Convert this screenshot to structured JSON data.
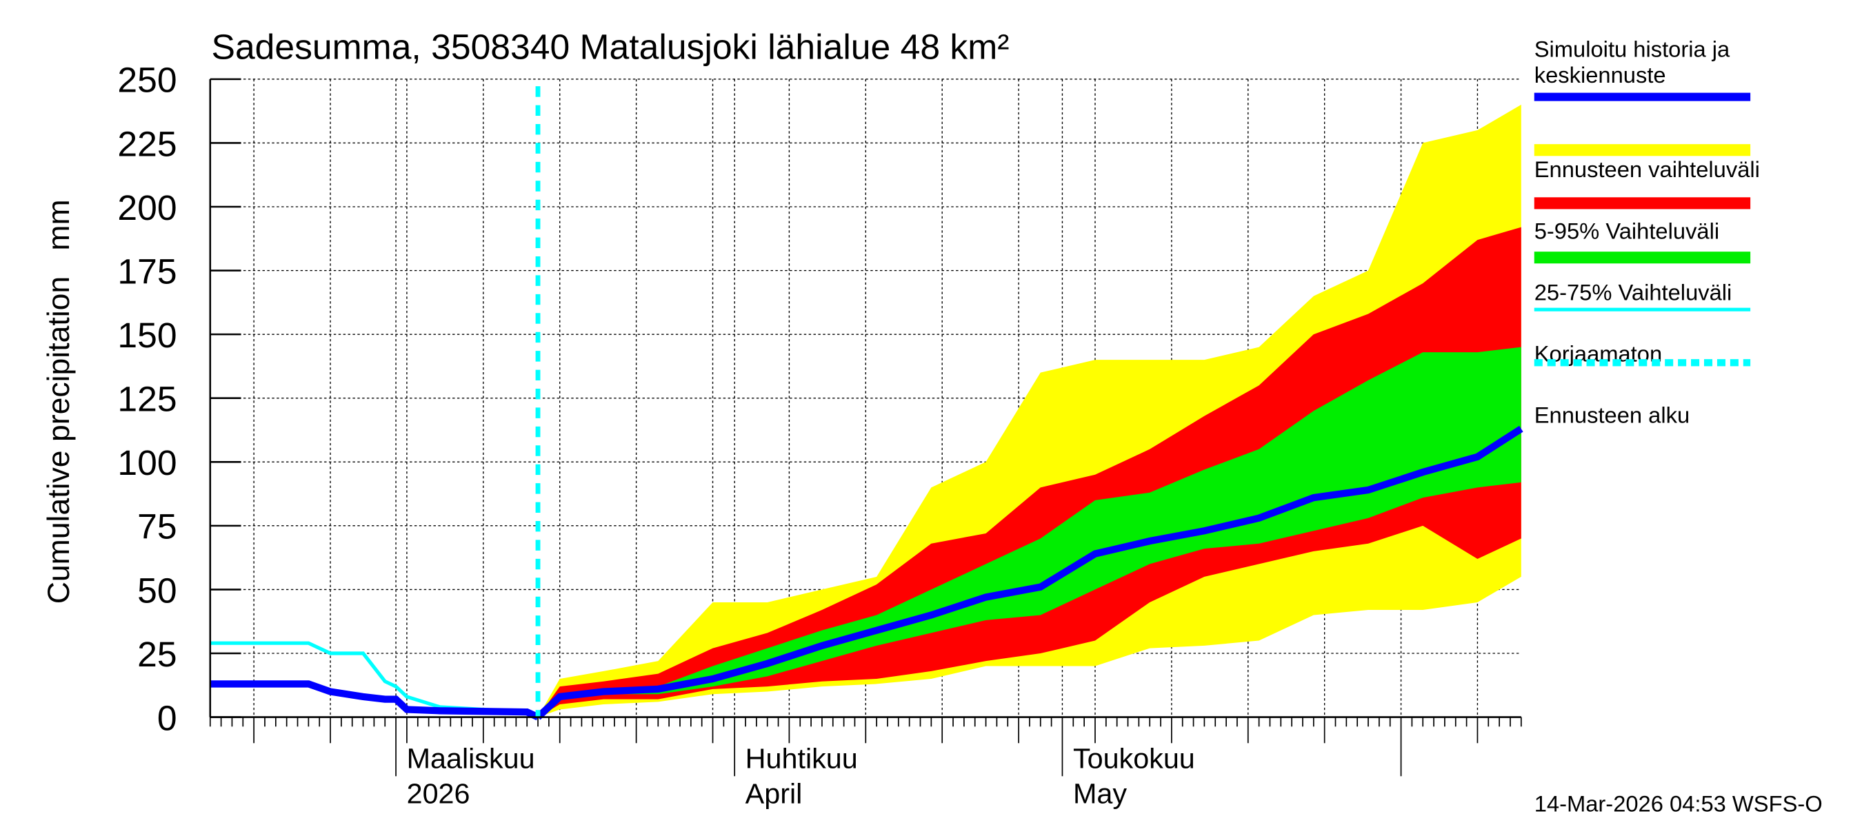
{
  "chart_data": {
    "type": "area",
    "title": "Sadesumma, 3508340 Matalusjoki lähialue 48 km²",
    "ylabel": "Cumulative precipitation   mm",
    "xlabel": "",
    "ylim": [
      0,
      250
    ],
    "yticks": [
      0,
      25,
      50,
      75,
      100,
      125,
      150,
      175,
      200,
      225,
      250
    ],
    "xlim": [
      "2026-02-12",
      "2026-06-12"
    ],
    "grid": true,
    "legend_position": "right",
    "month_labels": [
      {
        "date": "2026-03-01",
        "line1": "Maaliskuu",
        "line2": "2026"
      },
      {
        "date": "2026-04-01",
        "line1": "Huhtikuu",
        "line2": "April"
      },
      {
        "date": "2026-05-01",
        "line1": "Toukokuu",
        "line2": "May"
      }
    ],
    "forecast_start": "2026-03-14",
    "history": {
      "dates": [
        "2026-02-12",
        "2026-02-21",
        "2026-02-23",
        "2026-02-26",
        "2026-02-28",
        "2026-03-01",
        "2026-03-02",
        "2026-03-05",
        "2026-03-13",
        "2026-03-14"
      ],
      "simulated": [
        13,
        13,
        10,
        8,
        7,
        7,
        3,
        2.5,
        2,
        0
      ],
      "uncorrected": [
        29,
        29,
        25,
        25,
        14,
        12,
        8,
        4,
        2,
        0
      ]
    },
    "forecast": {
      "dates": [
        "2026-03-14",
        "2026-03-16",
        "2026-03-20",
        "2026-03-25",
        "2026-03-30",
        "2026-04-04",
        "2026-04-09",
        "2026-04-14",
        "2026-04-19",
        "2026-04-24",
        "2026-04-29",
        "2026-05-04",
        "2026-05-09",
        "2026-05-14",
        "2026-05-19",
        "2026-05-24",
        "2026-05-29",
        "2026-06-03",
        "2026-06-08",
        "2026-06-12"
      ],
      "max": [
        0,
        15,
        18,
        22,
        45,
        45,
        50,
        55,
        90,
        100,
        135,
        140,
        140,
        140,
        145,
        165,
        175,
        225,
        230,
        240
      ],
      "p95": [
        0,
        12,
        14,
        17,
        27,
        33,
        42,
        52,
        68,
        72,
        90,
        95,
        105,
        118,
        130,
        150,
        158,
        170,
        187,
        192
      ],
      "p75": [
        0,
        9,
        11,
        12,
        20,
        27,
        34,
        40,
        50,
        60,
        70,
        85,
        88,
        97,
        105,
        120,
        132,
        143,
        143,
        145
      ],
      "median": [
        0,
        8,
        10,
        11,
        15,
        21,
        28,
        34,
        40,
        47,
        51,
        64,
        69,
        73,
        78,
        86,
        89,
        96,
        102,
        113
      ],
      "p25": [
        0,
        7,
        9,
        9,
        12,
        16,
        22,
        28,
        33,
        38,
        40,
        50,
        60,
        66,
        68,
        73,
        78,
        86,
        90,
        92
      ],
      "p5": [
        0,
        5,
        7,
        7,
        11,
        12,
        14,
        15,
        18,
        22,
        25,
        30,
        45,
        55,
        60,
        65,
        68,
        75,
        62,
        70
      ],
      "min": [
        0,
        3,
        5,
        6,
        9,
        10,
        12,
        13,
        15,
        20,
        20,
        20,
        27,
        28,
        30,
        40,
        42,
        42,
        45,
        55
      ]
    },
    "legend": [
      {
        "label": "Simuloitu historia ja keskiennuste",
        "color": "#0000ff",
        "style": "line"
      },
      {
        "label": "Ennusteen vaihteluväli",
        "color": "#ffff00",
        "style": "band"
      },
      {
        "label": "5-95% Vaihteluväli",
        "color": "#ff0000",
        "style": "band"
      },
      {
        "label": "25-75% Vaihteluväli",
        "color": "#00ee00",
        "style": "band"
      },
      {
        "label": "Korjaamaton",
        "color": "#00ffff",
        "style": "line"
      },
      {
        "label": "Ennusteen alku",
        "color": "#00ffff",
        "style": "dashed"
      }
    ],
    "footer": "14-Mar-2026 04:53 WSFS-O"
  }
}
